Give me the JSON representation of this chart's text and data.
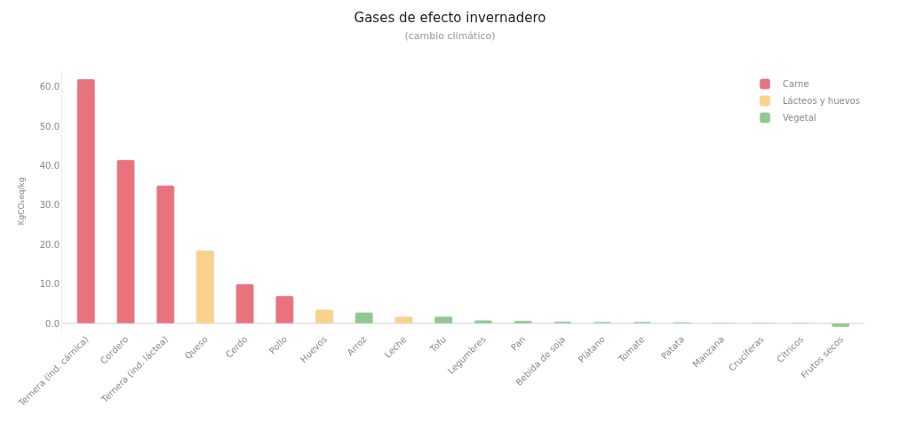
{
  "chart_data": {
    "type": "bar",
    "title": "Gases de efecto invernadero",
    "subtitle": "(cambio climático)",
    "ylabel": "KgCO₂eq/kg",
    "categories": [
      "Ternera (ind. cárnica)",
      "Cordero",
      "Ternera (ind. láctea)",
      "Queso",
      "Cerdo",
      "Pollo",
      "Huevos",
      "Arroz",
      "Leche",
      "Tofu",
      "Legumbres",
      "Pan",
      "Bebida de soja",
      "Plátano",
      "Tomate",
      "Patata",
      "Manzana",
      "Crucíferas",
      "Cítricos",
      "Frutos secos"
    ],
    "series": [
      {
        "name": "Carne",
        "color": "#e8737d",
        "values": [
          62.0,
          41.5,
          35.0,
          null,
          10.0,
          7.0,
          null,
          null,
          null,
          null,
          null,
          null,
          null,
          null,
          null,
          null,
          null,
          null,
          null,
          null
        ]
      },
      {
        "name": "Lácteos y huevos",
        "color": "#fbd28a",
        "values": [
          null,
          null,
          null,
          18.5,
          null,
          null,
          3.5,
          null,
          1.7,
          null,
          null,
          null,
          null,
          null,
          null,
          null,
          null,
          null,
          null,
          null
        ]
      },
      {
        "name": "Vegetal",
        "color": "#8fc98f",
        "values": [
          null,
          null,
          null,
          null,
          null,
          null,
          null,
          2.8,
          null,
          1.8,
          0.8,
          0.7,
          0.5,
          0.4,
          0.4,
          0.3,
          0.2,
          0.2,
          0.2,
          -0.9
        ]
      }
    ],
    "ylim": [
      -2,
      64
    ],
    "yticks": [
      {
        "value": 0,
        "label": "0.0"
      },
      {
        "value": 10,
        "label": "10.0"
      },
      {
        "value": 20,
        "label": "20.0"
      },
      {
        "value": 30,
        "label": "30.0"
      },
      {
        "value": 40,
        "label": "40.0"
      },
      {
        "value": 50,
        "label": "50.0"
      },
      {
        "value": 60,
        "label": "60.0"
      }
    ],
    "legend": "top right"
  }
}
